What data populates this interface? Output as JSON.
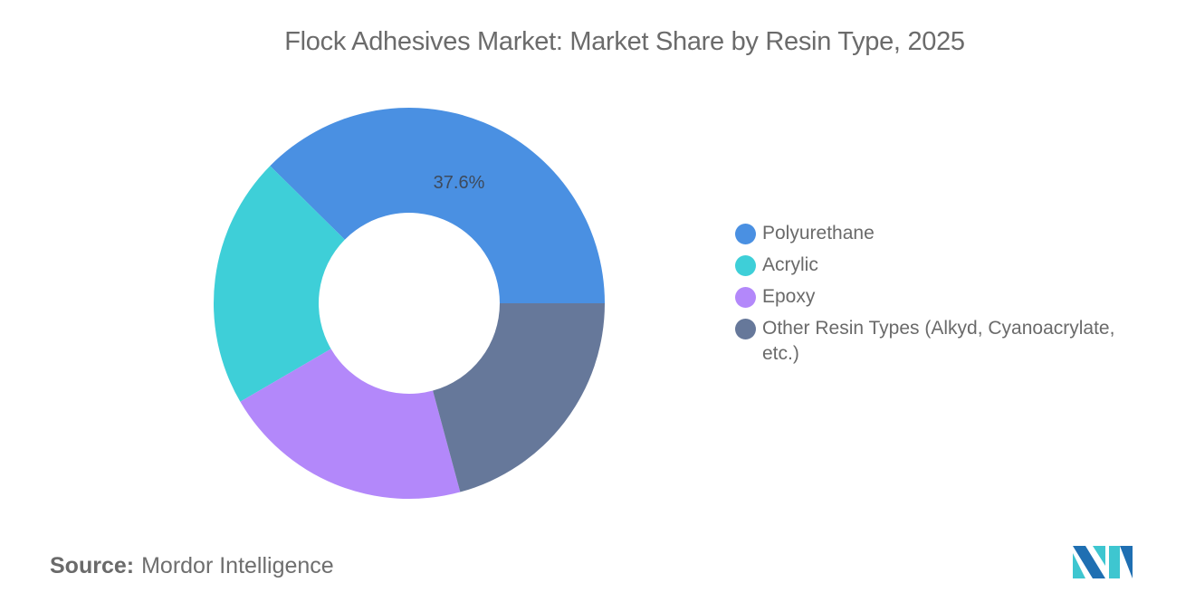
{
  "title": "Flock Adhesives Market: Market Share by Resin Type, 2025",
  "source": {
    "label": "Source:",
    "value": "Mordor Intelligence"
  },
  "legend": {
    "items": [
      {
        "label": "Polyurethane",
        "color": "#4a90e2"
      },
      {
        "label": "Acrylic",
        "color": "#3ecfd8"
      },
      {
        "label": "Epoxy",
        "color": "#b388fa"
      },
      {
        "label": "Other Resin Types (Alkyd, Cyanoacrylate, etc.)",
        "color": "#66789a"
      }
    ]
  },
  "data_label": "37.6%",
  "colors": {
    "logo_dark": "#1f6fb2",
    "logo_teal": "#3ec6d0"
  },
  "chart_data": {
    "type": "pie",
    "variant": "donut",
    "title": "Flock Adhesives Market: Market Share by Resin Type, 2025",
    "categories": [
      "Polyurethane",
      "Acrylic",
      "Epoxy",
      "Other Resin Types (Alkyd, Cyanoacrylate, etc.)"
    ],
    "values": [
      37.6,
      20.8,
      20.8,
      20.8
    ],
    "unit": "%",
    "labeled_values": {
      "Polyurethane": 37.6
    },
    "colors": [
      "#4a90e2",
      "#3ecfd8",
      "#b388fa",
      "#66789a"
    ],
    "legend_position": "right",
    "start_angle": "3 o'clock, counter-clockwise",
    "source": "Mordor Intelligence"
  }
}
